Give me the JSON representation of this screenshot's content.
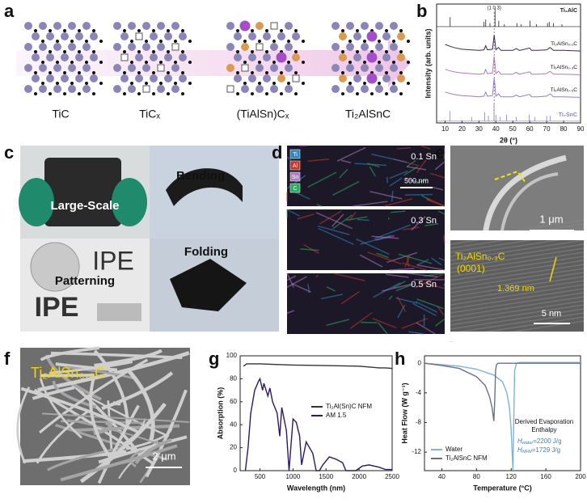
{
  "panel_labels": [
    "a",
    "b",
    "c",
    "d",
    "e",
    "f",
    "g",
    "h"
  ],
  "panel_a": {
    "labels": [
      "TiC",
      "TiCₓ",
      "(TiAlSn)Cₓ",
      "Ti₂AlSnC"
    ]
  },
  "panel_c": {
    "labels": [
      "Large-Scale",
      "Bending",
      "Patterning",
      "Folding"
    ],
    "photo_text": [
      "IPE",
      "IPE"
    ]
  },
  "panel_d": {
    "elements": [
      "Ti",
      "Al",
      "Sn",
      "C"
    ],
    "samples": [
      "0.1 Sn",
      "0.3 Sn",
      "0.5 Sn"
    ],
    "scale_bar": "500 nm"
  },
  "panel_e": {
    "sem_scale_bar": "1 μm",
    "phase": "Ti₂AlSn₀.₃C",
    "plane": "(0001)",
    "spacing": "1.369 nm",
    "tem_scale_bar": "5 nm"
  },
  "panel_f": {
    "phase": "Ti₂AlSn₀.₃C",
    "scale_bar": "2 μm"
  },
  "chart_data": [
    {
      "type": "line",
      "xlabel": "2θ (°)",
      "ylabel": "Intensity (arb. units)",
      "xlim": [
        5,
        90
      ],
      "ylim": [
        0,
        10
      ],
      "xticks": [
        10,
        20,
        30,
        40,
        50,
        60,
        70,
        80,
        90
      ],
      "series": [
        {
          "name": "Ti₂AlSn₀.₁C",
          "color": "#3a2a4a",
          "x": [
            10,
            15,
            20,
            25,
            30,
            33,
            34,
            35,
            38,
            39,
            40,
            41.5,
            43,
            50,
            52,
            54,
            60,
            61,
            65,
            70,
            72,
            74,
            80,
            90
          ],
          "values": [
            6.6,
            6.35,
            6.2,
            6.15,
            6.1,
            6.15,
            6.5,
            6.15,
            6.2,
            7.4,
            6.15,
            6.35,
            6.1,
            6.1,
            6.25,
            6.1,
            6.3,
            6.1,
            6.1,
            6.15,
            6.35,
            6.1,
            6.1,
            6.05
          ]
        },
        {
          "name": "Ti₂AlSn₀.₃C",
          "color": "#b07ab8",
          "x": [
            10,
            15,
            20,
            25,
            30,
            33,
            34,
            35,
            38,
            39,
            40,
            41.5,
            43,
            50,
            52,
            54,
            60,
            61,
            65,
            70,
            72,
            74,
            80,
            90
          ],
          "values": [
            4.5,
            4.3,
            4.2,
            4.15,
            4.1,
            4.15,
            4.5,
            4.15,
            4.2,
            5.6,
            4.15,
            4.35,
            4.1,
            4.1,
            4.25,
            4.1,
            4.3,
            4.1,
            4.1,
            4.15,
            4.35,
            4.1,
            4.1,
            4.05
          ]
        },
        {
          "name": "Ti₂AlSn₀.₅C",
          "color": "#9b7bc9",
          "x": [
            10,
            15,
            20,
            25,
            30,
            33,
            34,
            35,
            38,
            39,
            40,
            41.5,
            43,
            50,
            52,
            54,
            60,
            61,
            65,
            70,
            72,
            74,
            80,
            90
          ],
          "values": [
            2.6,
            2.4,
            2.3,
            2.25,
            2.2,
            2.25,
            2.6,
            2.25,
            2.3,
            3.8,
            2.25,
            2.45,
            2.2,
            2.2,
            2.35,
            2.2,
            2.4,
            2.2,
            2.2,
            2.25,
            2.45,
            2.2,
            2.2,
            2.15
          ]
        }
      ],
      "references": [
        {
          "name": "Ti₂AlC",
          "color": "#222222",
          "baseline": 8.1,
          "x": [
            13,
            33,
            34,
            36.5,
            39.5,
            41.7,
            45,
            52.4,
            55,
            60.2,
            64,
            70.5,
            71.5,
            74,
            79
          ],
          "values": [
            8.9,
            8.5,
            8.7,
            8.4,
            9.7,
            8.6,
            8.3,
            8.4,
            8.3,
            8.6,
            8.3,
            8.4,
            8.5,
            8.4,
            8.3
          ]
        },
        {
          "name": "Ti₂SnC",
          "color": "#8b7fd0",
          "baseline": 0.15,
          "x": [
            12.8,
            25.8,
            33.4,
            35.6,
            38.9,
            40,
            42.6,
            46.3,
            52,
            59.7,
            63,
            70,
            72
          ],
          "values": [
            1.0,
            0.5,
            0.9,
            0.6,
            1.6,
            0.7,
            0.5,
            0.7,
            0.5,
            0.7,
            0.5,
            0.6,
            0.6
          ]
        }
      ],
      "annotations": [
        {
          "text": "(1 0 3)",
          "x": 39
        }
      ]
    },
    {
      "type": "line",
      "xlabel": "Wavelength (nm)",
      "ylabel": "Absorption (%)",
      "xlim": [
        200,
        2500
      ],
      "ylim": [
        0,
        100
      ],
      "xticks": [
        500,
        1000,
        1500,
        2000,
        2500
      ],
      "yticks": [
        0,
        20,
        40,
        60,
        80,
        100
      ],
      "legend": "right",
      "series": [
        {
          "name": "Ti₂Al(Sn)C NFM",
          "color": "#333333",
          "x": [
            250,
            300,
            400,
            500,
            700,
            1000,
            1500,
            2000,
            2200,
            2300,
            2400,
            2500
          ],
          "values": [
            91,
            93,
            93,
            93,
            92.5,
            92,
            91.5,
            91,
            90,
            89.5,
            89.5,
            89
          ]
        },
        {
          "name": "AM 1.5",
          "color": "#2d1a5e",
          "x": [
            280,
            320,
            360,
            420,
            480,
            500,
            540,
            560,
            620,
            650,
            690,
            760,
            800,
            830,
            900,
            940,
            1000,
            1050,
            1100,
            1130,
            1200,
            1250,
            1300,
            1350,
            1400,
            1450,
            1550,
            1650,
            1750,
            1800,
            1950,
            2050,
            2150,
            2300,
            2400,
            2500
          ],
          "values": [
            0,
            20,
            50,
            70,
            78,
            80,
            70,
            76,
            65,
            72,
            60,
            50,
            30,
            55,
            35,
            0,
            45,
            42,
            30,
            5,
            25,
            20,
            15,
            0,
            0,
            5,
            12,
            10,
            7,
            0,
            0,
            4,
            5,
            3,
            1,
            1
          ]
        }
      ]
    },
    {
      "type": "line",
      "xlabel": "Temperature (°C)",
      "ylabel": "Heat Flow (W g⁻¹)",
      "xlim": [
        20,
        200
      ],
      "ylim": [
        -14.5,
        1
      ],
      "xticks": [
        40,
        80,
        120,
        160,
        200
      ],
      "yticks": [
        0,
        -4,
        -8,
        -12
      ],
      "legend": "bottom-left",
      "series": [
        {
          "name": "Water",
          "color": "#7fb3d5",
          "x": [
            20,
            40,
            60,
            80,
            100,
            110,
            115,
            118,
            120,
            122,
            123,
            124,
            126,
            130,
            140,
            160,
            200
          ],
          "values": [
            0,
            -0.2,
            -0.4,
            -0.8,
            -1.6,
            -2.5,
            -4,
            -6,
            -9,
            -14.5,
            -8,
            -1,
            0,
            0.1,
            0.1,
            0.1,
            0.1
          ]
        },
        {
          "name": "Ti₂AlSnC NFM",
          "color": "#6b6f8a",
          "x": [
            20,
            40,
            60,
            80,
            90,
            95,
            98,
            100,
            101,
            102,
            103,
            105,
            110,
            120,
            140,
            200
          ],
          "values": [
            0,
            -0.3,
            -0.7,
            -1.8,
            -3,
            -4.5,
            -6,
            -7.8,
            -5,
            -1,
            -0.2,
            0,
            0,
            0,
            0,
            0
          ]
        }
      ],
      "note": [
        "Derived Evaporation",
        "Enthalpy"
      ],
      "enthalpies": [
        {
          "symbol": "H",
          "subscript": "water",
          "text": "=2200 J/g"
        },
        {
          "symbol": "H",
          "subscript": "NFM",
          "text": "=1729 J/g"
        }
      ]
    }
  ]
}
